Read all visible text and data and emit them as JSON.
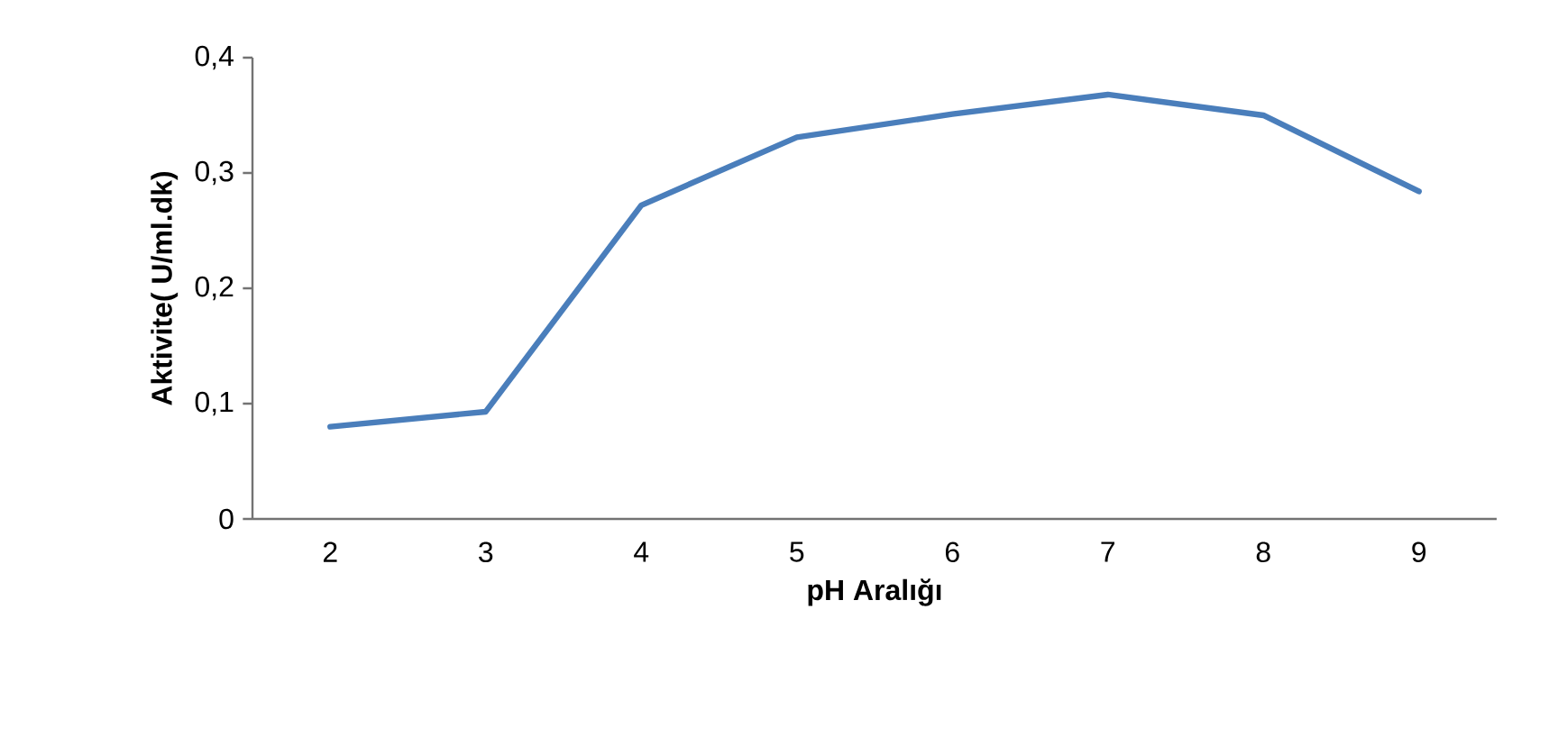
{
  "chart_data": {
    "type": "line",
    "xlabel": "pH Aralığı",
    "ylabel": "Aktivite( U/ml.dk)",
    "categories": [
      "2",
      "3",
      "4",
      "5",
      "6",
      "7",
      "8",
      "9"
    ],
    "series": [
      {
        "color": "#4a7ebb",
        "values": [
          0.08,
          0.093,
          0.272,
          0.331,
          0.351,
          0.368,
          0.35,
          0.284
        ]
      }
    ],
    "ylim": [
      0,
      0.4
    ],
    "yticks": [
      0,
      {
        "value": 0.1,
        "label": "0,1"
      },
      {
        "value": 0.2,
        "label": "0,2"
      },
      {
        "value": 0.3,
        "label": "0,3"
      },
      {
        "value": 0.4,
        "label": "0,4"
      }
    ],
    "grid": false,
    "marker": "none",
    "line_style": "solid"
  }
}
